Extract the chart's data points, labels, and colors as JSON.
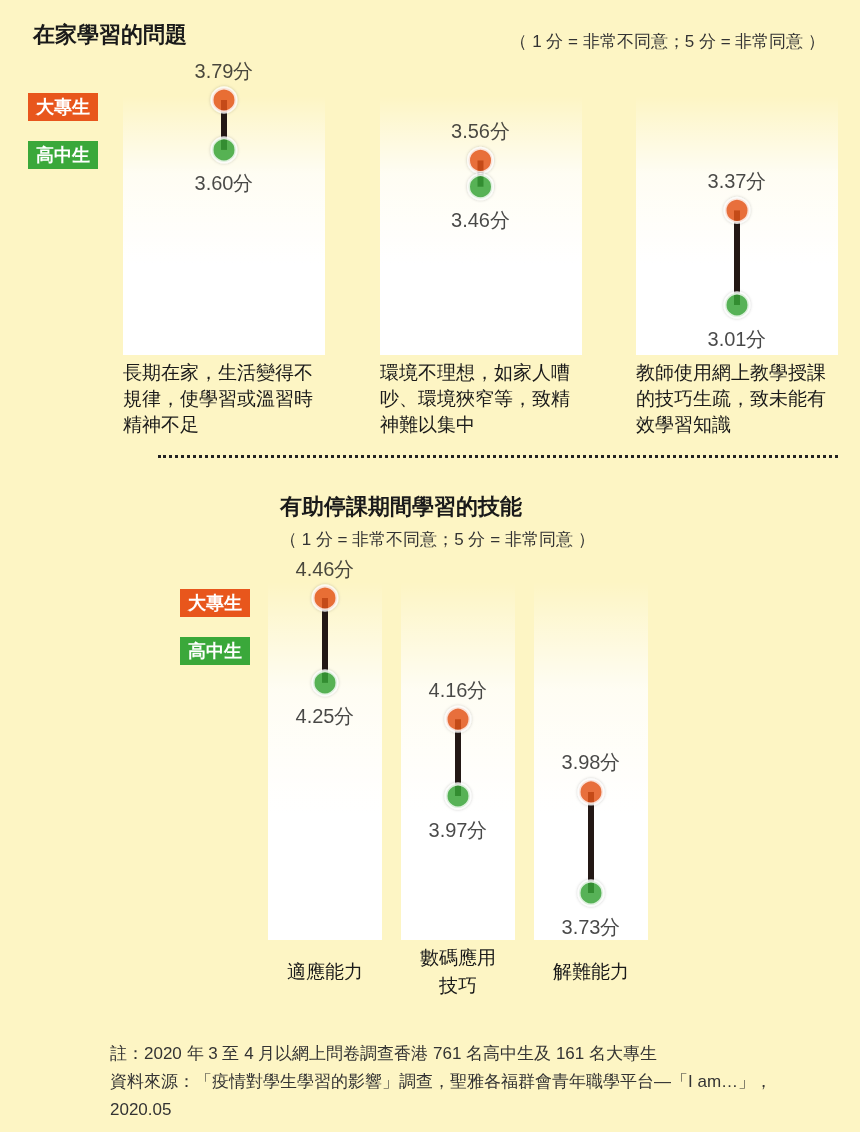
{
  "chart_data": [
    {
      "type": "scatter",
      "title": "在家學習的問題",
      "subtitle": "（ 1 分 = 非常不同意；5 分 = 非常同意 ）",
      "categories": [
        "長期在家，生活變得不規律，使學習或溫習時精神不足",
        "環境不理想，如家人嘈吵、環境狹窄等，致精神難以集中",
        "教師使用網上教學授課的技巧生疏，致未能有效學習知識"
      ],
      "series": [
        {
          "name": "大專生",
          "color": "#e8561c",
          "values": [
            3.79,
            3.56,
            3.37
          ],
          "value_labels": [
            "3.79分",
            "3.56分",
            "3.37分"
          ]
        },
        {
          "name": "高中生",
          "color": "#3aa83a",
          "values": [
            3.6,
            3.46,
            3.01
          ],
          "value_labels": [
            "3.60分",
            "3.46分",
            "3.01分"
          ]
        }
      ],
      "legend": "top left",
      "marker": "circle",
      "tick_labels": "x"
    },
    {
      "type": "scatter",
      "title": "有助停課期間學習的技能",
      "subtitle": "（ 1 分 = 非常不同意；5 分 = 非常同意 ）",
      "categories": [
        "適應能力",
        "數碼應用技巧",
        "解難能力"
      ],
      "series": [
        {
          "name": "大專生",
          "color": "#e8561c",
          "values": [
            4.46,
            4.16,
            3.98
          ],
          "value_labels": [
            "4.46分",
            "4.16分",
            "3.98分"
          ]
        },
        {
          "name": "高中生",
          "color": "#3aa83a",
          "values": [
            4.25,
            3.97,
            3.73
          ],
          "value_labels": [
            "4.25分",
            "3.97分",
            "3.73分"
          ]
        }
      ],
      "legend": "left",
      "marker": "circle",
      "tick_labels": "x",
      "annotations": [
        "註：2020 年 3 至 4 月以網上問卷調查香港 761 名高中生及 161 名大專生",
        "資料來源：「疫情對學生學習的影響」調查，聖雅各福群會青年職學平台—「I am…」，2020.05"
      ]
    }
  ]
}
